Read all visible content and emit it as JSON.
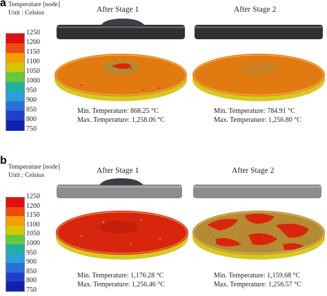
{
  "figure": {
    "legend_title": "Temperature [node]",
    "legend_unit": "Unit : Celsius",
    "legend_ticks": [
      "1250",
      "1200",
      "1150",
      "1100",
      "1050",
      "1000",
      "950",
      "900",
      "850",
      "800",
      "750"
    ],
    "legend_colors": [
      "#e01010",
      "#f04a10",
      "#f5a000",
      "#d6c800",
      "#66c840",
      "#22b0a0",
      "#2aa0d8",
      "#2a70d8",
      "#2040c8",
      "#1020b0"
    ],
    "colors": {
      "cap_dark": "#2e3034",
      "cap_gray": "#8a8c8e",
      "disk_orange": "#e27a12",
      "disk_red": "#d8260e",
      "disk_khaki": "#b58a32",
      "rim_yellow": "#d8c820"
    }
  },
  "panels": [
    {
      "letter": "a",
      "stages": [
        {
          "title": "After Stage 1",
          "min_label": "Min. Temperature: 868.25 °C",
          "max_label": "Max. Temperature: 1,258.06 °C"
        },
        {
          "title": "After Stage 2",
          "min_label": "Min. Temperature: 784.91 °C",
          "max_label": "Max. Temperature: 1,256.80 °C"
        }
      ]
    },
    {
      "letter": "b",
      "stages": [
        {
          "title": "After Stage 1",
          "min_label": "Min. Temperature: 1,176.28 °C",
          "max_label": "Max. Temperature: 1,256.46 °C"
        },
        {
          "title": "After Stage 2",
          "min_label": "Min. Temperature: 1,159.68 °C",
          "max_label": "Max. Temperature: 1,256.57 °C"
        }
      ]
    }
  ]
}
